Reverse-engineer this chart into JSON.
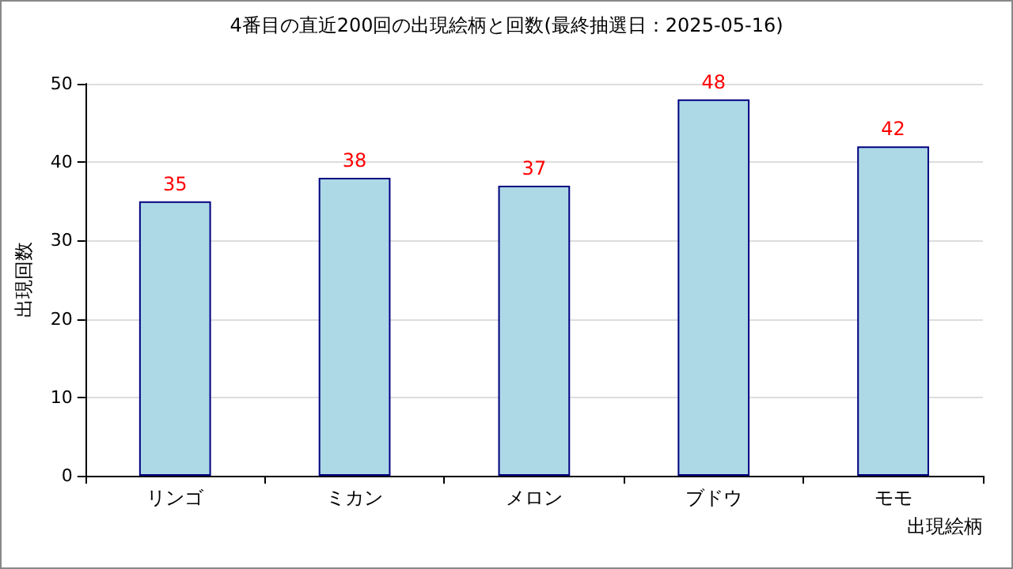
{
  "chart_data": {
    "type": "bar",
    "title": "4番目の直近200回の出現絵柄と回数(最終抽選日：2025-05-16)",
    "categories": [
      "リンゴ",
      "ミカン",
      "メロン",
      "ブドウ",
      "モモ"
    ],
    "values": [
      35,
      38,
      37,
      48,
      42
    ],
    "color": "#add8e6",
    "xlabel": "出現絵柄",
    "ylabel": "出現回数",
    "ylim": [
      0,
      50
    ],
    "yticks": [
      0,
      10,
      20,
      30,
      40,
      50
    ],
    "grid": "y",
    "data_labels": true
  }
}
